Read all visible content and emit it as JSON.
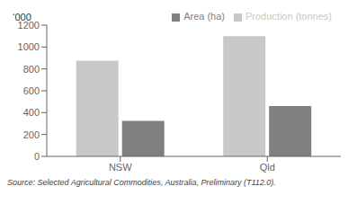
{
  "chart_data": {
    "type": "bar",
    "categories": [
      "NSW",
      "Qld"
    ],
    "series": [
      {
        "name": "Production (tonnes)",
        "color": "#c8c8c8",
        "values": [
          875,
          1100
        ]
      },
      {
        "name": "Area (ha)",
        "color": "#808080",
        "values": [
          325,
          460
        ]
      }
    ],
    "ylabel": "‘000",
    "ylim": [
      0,
      1200
    ],
    "yticks": [
      0,
      200,
      400,
      600,
      800,
      1000,
      1200
    ],
    "grid": false,
    "legend": "upper right",
    "annotations": [
      "Source: Selected Agricultural Commodities, Australia, Preliminary (T112.0)."
    ]
  }
}
